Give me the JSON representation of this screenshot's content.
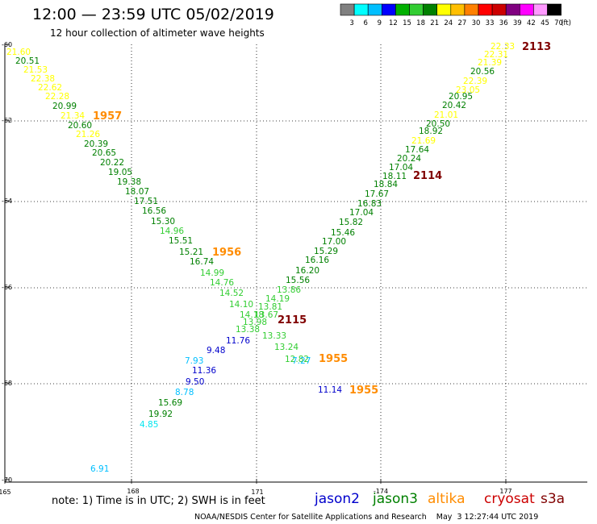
{
  "title": "12:00 — 23:59 UTC 05/02/2019",
  "subtitle": "12 hour collection of altimeter wave heights",
  "colorbar": {
    "colors": [
      "#808080",
      "#00ffff",
      "#00bfff",
      "#0000ff",
      "#00b000",
      "#32cd32",
      "#008000",
      "#ffff00",
      "#ffbf00",
      "#ff8000",
      "#ff0000",
      "#cc0000",
      "#800080",
      "#ff00ff",
      "#ff99ff",
      "#000000"
    ],
    "labels": [
      "3",
      "6",
      "9",
      "12",
      "15",
      "18",
      "21",
      "24",
      "27",
      "30",
      "33",
      "36",
      "39",
      "42",
      "45",
      "70",
      "(ft)"
    ]
  },
  "lon_ticks": [
    "165",
    "168",
    "171",
    "-174",
    "177"
  ],
  "lat_ticks": [
    "-60",
    "-62",
    "-64",
    "-66",
    "-68",
    "-70"
  ],
  "note": "note: 1) Time is in UTC; 2) SWH is in feet",
  "satellites": [
    {
      "name": "jason2",
      "color": "#0000cc"
    },
    {
      "name": "jason3",
      "color": "#008000"
    },
    {
      "name": "altika",
      "color": "#ff8c00"
    },
    {
      "name": "cryosat",
      "color": "#cc0000"
    },
    {
      "name": "s3a",
      "color": "#800000"
    }
  ],
  "footer": "NOAA/NESDIS Center for Satellite Applications and Research    May  3 12:27:44 UTC 2019",
  "pass_ids": [
    {
      "text": "1957",
      "color": "#ff8c00"
    },
    {
      "text": "1956",
      "color": "#ff8c00"
    },
    {
      "text": "2115",
      "color": "#800000"
    },
    {
      "text": "1955",
      "color": "#ff8c00"
    },
    {
      "text": "1955",
      "color": "#ff8c00"
    },
    {
      "text": "2113",
      "color": "#800000"
    },
    {
      "text": "2114",
      "color": "#800000"
    }
  ],
  "observations": [
    {
      "v": "21.60",
      "c": "#ffff00"
    },
    {
      "v": "20.51",
      "c": "#008000"
    },
    {
      "v": "21.53",
      "c": "#ffff00"
    },
    {
      "v": "22.38",
      "c": "#ffff00"
    },
    {
      "v": "22.62",
      "c": "#ffff00"
    },
    {
      "v": "22.28",
      "c": "#ffff00"
    },
    {
      "v": "20.99",
      "c": "#008000"
    },
    {
      "v": "21.34",
      "c": "#ffff00"
    },
    {
      "v": "20.60",
      "c": "#008000"
    },
    {
      "v": "21.26",
      "c": "#ffff00"
    },
    {
      "v": "20.39",
      "c": "#008000"
    },
    {
      "v": "20.65",
      "c": "#008000"
    },
    {
      "v": "20.22",
      "c": "#008000"
    },
    {
      "v": "19.05",
      "c": "#008000"
    },
    {
      "v": "19.38",
      "c": "#008000"
    },
    {
      "v": "18.07",
      "c": "#008000"
    },
    {
      "v": "17.51",
      "c": "#008000"
    },
    {
      "v": "16.56",
      "c": "#008000"
    },
    {
      "v": "15.30",
      "c": "#008000"
    },
    {
      "v": "14.96",
      "c": "#32cd32"
    },
    {
      "v": "15.51",
      "c": "#008000"
    },
    {
      "v": "15.21",
      "c": "#008000"
    },
    {
      "v": "16.74",
      "c": "#008000"
    },
    {
      "v": "14.99",
      "c": "#32cd32"
    },
    {
      "v": "14.76",
      "c": "#32cd32"
    },
    {
      "v": "14.52",
      "c": "#32cd32"
    },
    {
      "v": "14.10",
      "c": "#32cd32"
    },
    {
      "v": "14.18",
      "c": "#32cd32"
    },
    {
      "v": "13.98",
      "c": "#32cd32"
    },
    {
      "v": "13.38",
      "c": "#32cd32"
    },
    {
      "v": "11.76",
      "c": "#0000cc"
    },
    {
      "v": "9.48",
      "c": "#0000cc"
    },
    {
      "v": "7.93",
      "c": "#00bfff"
    },
    {
      "v": "11.36",
      "c": "#0000cc"
    },
    {
      "v": "9.50",
      "c": "#0000cc"
    },
    {
      "v": "8.78",
      "c": "#00bfff"
    },
    {
      "v": "15.69",
      "c": "#008000"
    },
    {
      "v": "19.92",
      "c": "#008000"
    },
    {
      "v": "4.85",
      "c": "#00e5ee"
    },
    {
      "v": "6.91",
      "c": "#00bfff"
    },
    {
      "v": "22.33",
      "c": "#ffff00"
    },
    {
      "v": "22.31",
      "c": "#ffff00"
    },
    {
      "v": "21.39",
      "c": "#ffff00"
    },
    {
      "v": "20.56",
      "c": "#008000"
    },
    {
      "v": "22.39",
      "c": "#ffff00"
    },
    {
      "v": "23.05",
      "c": "#ffff00"
    },
    {
      "v": "20.95",
      "c": "#008000"
    },
    {
      "v": "20.42",
      "c": "#008000"
    },
    {
      "v": "21.01",
      "c": "#ffff00"
    },
    {
      "v": "20.50",
      "c": "#008000"
    },
    {
      "v": "18.92",
      "c": "#008000"
    },
    {
      "v": "21.69",
      "c": "#ffff00"
    },
    {
      "v": "17.64",
      "c": "#008000"
    },
    {
      "v": "20.24",
      "c": "#008000"
    },
    {
      "v": "17.04",
      "c": "#008000"
    },
    {
      "v": "18.11",
      "c": "#008000"
    },
    {
      "v": "18.84",
      "c": "#008000"
    },
    {
      "v": "17.67",
      "c": "#008000"
    },
    {
      "v": "16.83",
      "c": "#008000"
    },
    {
      "v": "17.04",
      "c": "#008000"
    },
    {
      "v": "15.82",
      "c": "#008000"
    },
    {
      "v": "15.46",
      "c": "#008000"
    },
    {
      "v": "17.00",
      "c": "#008000"
    },
    {
      "v": "15.29",
      "c": "#008000"
    },
    {
      "v": "16.16",
      "c": "#008000"
    },
    {
      "v": "16.20",
      "c": "#008000"
    },
    {
      "v": "15.56",
      "c": "#008000"
    },
    {
      "v": "13.86",
      "c": "#32cd32"
    },
    {
      "v": "14.19",
      "c": "#32cd32"
    },
    {
      "v": "13.81",
      "c": "#32cd32"
    },
    {
      "v": "13.67",
      "c": "#32cd32"
    },
    {
      "v": "13.33",
      "c": "#32cd32"
    },
    {
      "v": "13.24",
      "c": "#32cd32"
    },
    {
      "v": "12.82",
      "c": "#32cd32"
    },
    {
      "v": "7.27",
      "c": "#00bfff"
    },
    {
      "v": "11.14",
      "c": "#0000cc"
    }
  ]
}
